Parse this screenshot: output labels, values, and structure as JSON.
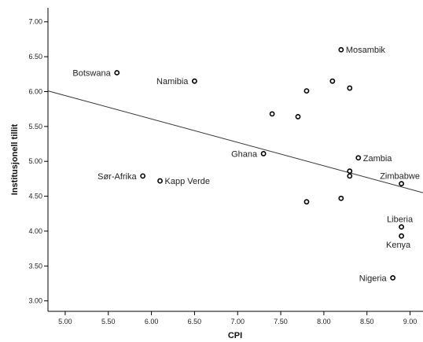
{
  "chart_data": {
    "type": "scatter",
    "title": "",
    "xlabel": "CPI",
    "ylabel": "Institusjonell tillit",
    "xlim": [
      4.8,
      9.15
    ],
    "ylim": [
      2.85,
      7.2
    ],
    "xticks": [
      "5.00",
      "5.50",
      "6.00",
      "6.50",
      "7.00",
      "7.50",
      "8.00",
      "8.50",
      "9.00"
    ],
    "yticks": [
      "3.00",
      "3.50",
      "4.00",
      "4.50",
      "5.00",
      "5.50",
      "6.00",
      "6.50",
      "7.00"
    ],
    "grid": false,
    "points": [
      {
        "x": 5.6,
        "y": 6.27,
        "label": "Botswana",
        "anchor": "left"
      },
      {
        "x": 6.5,
        "y": 6.15,
        "label": "Namibia",
        "anchor": "left"
      },
      {
        "x": 8.2,
        "y": 6.6,
        "label": "Mosambik",
        "anchor": "right"
      },
      {
        "x": 8.1,
        "y": 6.15,
        "label": "",
        "anchor": "right"
      },
      {
        "x": 8.3,
        "y": 6.05,
        "label": "",
        "anchor": "right"
      },
      {
        "x": 7.8,
        "y": 6.01,
        "label": "",
        "anchor": "right"
      },
      {
        "x": 7.4,
        "y": 5.68,
        "label": "",
        "anchor": "right"
      },
      {
        "x": 7.7,
        "y": 5.64,
        "label": "",
        "anchor": "right"
      },
      {
        "x": 7.3,
        "y": 5.11,
        "label": "Ghana",
        "anchor": "left"
      },
      {
        "x": 8.4,
        "y": 5.05,
        "label": "Zambia",
        "anchor": "right"
      },
      {
        "x": 8.3,
        "y": 4.86,
        "label": "",
        "anchor": "right"
      },
      {
        "x": 8.3,
        "y": 4.79,
        "label": "",
        "anchor": "right"
      },
      {
        "x": 5.9,
        "y": 4.79,
        "label": "Sør-Afrika",
        "anchor": "left"
      },
      {
        "x": 6.1,
        "y": 4.72,
        "label": "Kapp Verde",
        "anchor": "right"
      },
      {
        "x": 8.9,
        "y": 4.68,
        "label": "Zimbabwe",
        "anchor": "above"
      },
      {
        "x": 8.2,
        "y": 4.47,
        "label": "",
        "anchor": "right"
      },
      {
        "x": 7.8,
        "y": 4.42,
        "label": "",
        "anchor": "right"
      },
      {
        "x": 8.9,
        "y": 4.06,
        "label": "Liberia",
        "anchor": "above"
      },
      {
        "x": 8.9,
        "y": 3.93,
        "label": "Kenya",
        "anchor": "below"
      },
      {
        "x": 8.8,
        "y": 3.33,
        "label": "Nigeria",
        "anchor": "left"
      }
    ],
    "fit_line": {
      "x1": 4.8,
      "y1": 6.01,
      "x2": 9.15,
      "y2": 4.55
    },
    "colors": {
      "points": "#000000",
      "line": "#333333",
      "axis": "#000000",
      "text": "#222222"
    }
  }
}
